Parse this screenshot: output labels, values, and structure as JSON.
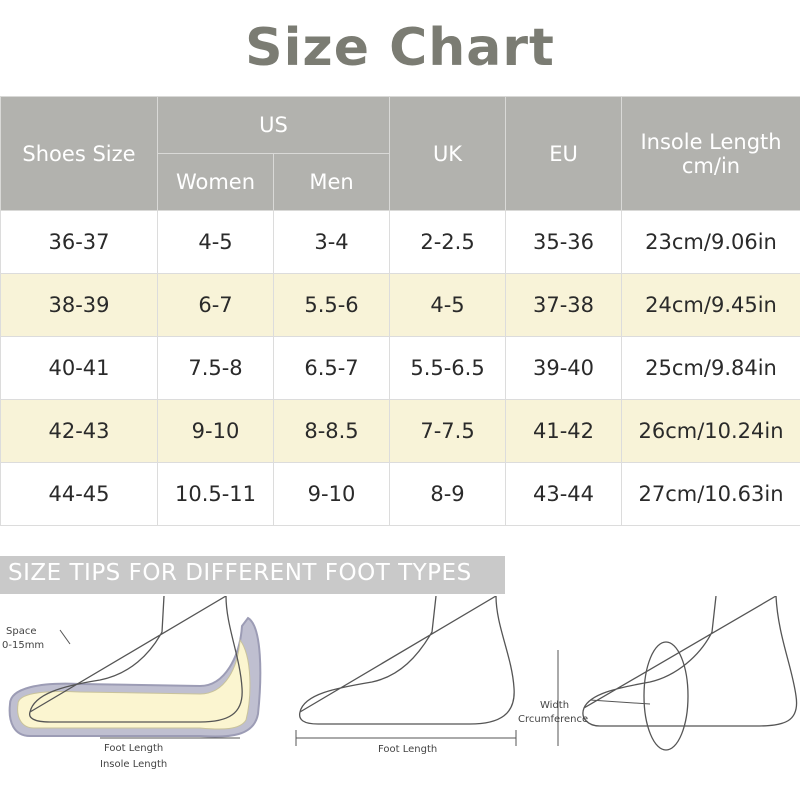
{
  "title": "Size Chart",
  "table": {
    "headers": {
      "shoes_size": "Shoes Size",
      "us": "US",
      "women": "Women",
      "men": "Men",
      "uk": "UK",
      "eu": "EU",
      "insole_line1": "Insole Length",
      "insole_line2": "cm/in"
    },
    "rows": [
      {
        "shoes": "36-37",
        "women": "4-5",
        "men": "3-4",
        "uk": "2-2.5",
        "eu": "35-36",
        "insole": "23cm/9.06in"
      },
      {
        "shoes": "38-39",
        "women": "6-7",
        "men": "5.5-6",
        "uk": "4-5",
        "eu": "37-38",
        "insole": "24cm/9.45in"
      },
      {
        "shoes": "40-41",
        "women": "7.5-8",
        "men": "6.5-7",
        "uk": "5.5-6.5",
        "eu": "39-40",
        "insole": "25cm/9.84in"
      },
      {
        "shoes": "42-43",
        "women": "9-10",
        "men": "8-8.5",
        "uk": "7-7.5",
        "eu": "41-42",
        "insole": "26cm/10.24in"
      },
      {
        "shoes": "44-45",
        "women": "10.5-11",
        "men": "9-10",
        "uk": "8-9",
        "eu": "43-44",
        "insole": "27cm/10.63in"
      }
    ],
    "header_color": "#b2b2ae",
    "highlight_row_color": "#f8f3d8"
  },
  "tips": {
    "banner": "SIZE TIPS FOR DIFFERENT FOOT TYPES",
    "diagram1": {
      "space_line1": "Space",
      "space_line2": "0-15mm",
      "foot_length": "Foot Length",
      "insole_length": "Insole Length"
    },
    "diagram2": {
      "foot_length": "Foot Length"
    },
    "diagram3": {
      "width_line1": "Width",
      "width_line2": "Crcumference"
    }
  }
}
